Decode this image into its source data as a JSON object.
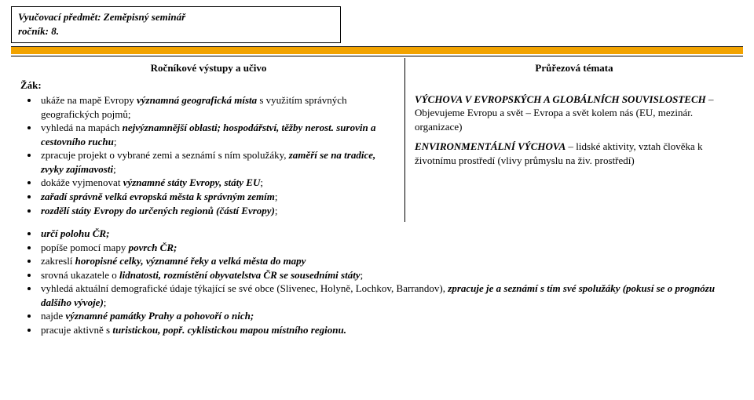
{
  "header": {
    "line1": "Vyučovací předmět: Zeměpisný seminář",
    "line2": "ročník: 8."
  },
  "columns": {
    "left_head": "Ročníkové výstupy a učivo",
    "right_head": "Průřezová témata",
    "zak_label": "Žák:"
  },
  "left_list_a": [
    {
      "pre": "ukáže na mapě Evropy ",
      "b": "významná geografická místa",
      "post": " s využitím správných geografických pojmů;"
    },
    {
      "pre": "vyhledá na mapách ",
      "b": "nejvýznamnější oblasti; hospodářství, těžby nerost. surovin a cestovního ruchu",
      "post": ";"
    },
    {
      "pre": "zpracuje projekt o vybrané zemi a seznámí s ním spolužáky, ",
      "b": "zaměří se na tradice, zvyky zajímavosti",
      "post": ";"
    },
    {
      "pre": "dokáže vyjmenovat ",
      "b": "významné státy Evropy, státy EU",
      "post": ";"
    },
    {
      "pre": "",
      "b": "zařadí správně velká evropská města k správným zemím",
      "post": ";"
    },
    {
      "pre": "",
      "b": "rozdělí státy Evropy do určených regionů (částí Evropy)",
      "post": ";"
    }
  ],
  "left_list_b": [
    {
      "pre": "",
      "b": "určí polohu ČR;",
      "post": ""
    },
    {
      "pre": "popíše pomocí mapy ",
      "b": "povrch ČR;",
      "post": ""
    },
    {
      "pre": "zakreslí ",
      "b": "horopisné celky, významné řeky a velká města do mapy",
      "post": ""
    },
    {
      "pre": "srovná ukazatele o ",
      "b": "lidnatosti, rozmístění obyvatelstva ČR se sousedními státy",
      "post": ";"
    },
    {
      "pre": "vyhledá aktuální demografické údaje týkající se své obce (Slivenec, Holyně, Lochkov, Barrandov), ",
      "b": "zpracuje je a seznámí s tím své spolužáky (pokusí se o prognózu dalšího vývoje)",
      "post": ";"
    },
    {
      "pre": " najde ",
      "b": "významné památky Prahy a pohovoří o nich;",
      "post": ""
    },
    {
      "pre": "pracuje aktivně s ",
      "b": "turistickou, popř. cyklistickou mapou místního regionu.",
      "post": ""
    }
  ],
  "right": {
    "p1_head": "VÝCHOVA V EVROPSKÝCH A GLOBÁLNÍCH SOUVISLOSTECH",
    "p1_body": " – Objevujeme Evropu a svět – Evropa a svět kolem nás (EU, mezinár. organizace)",
    "p2_head": "ENVIRONMENTÁLNÍ VÝCHOVA",
    "p2_body": " – lidské aktivity, vztah člověka k životnímu prostředí (vlivy průmyslu na živ. prostředí)"
  }
}
